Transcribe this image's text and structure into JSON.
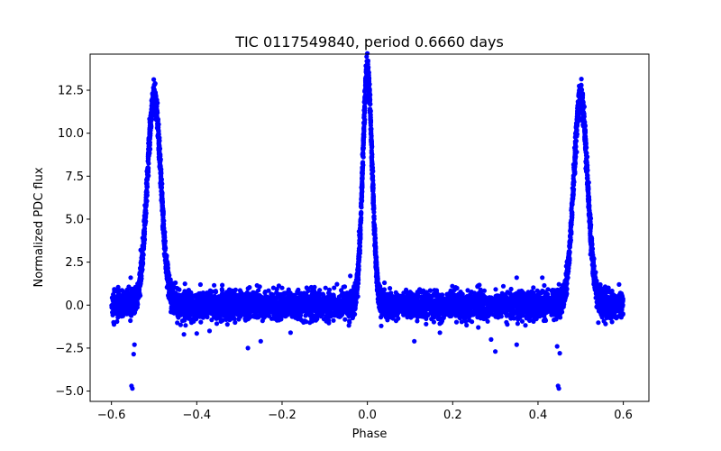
{
  "chart_data": {
    "type": "scatter",
    "title": "TIC 0117549840, period 0.6660 days",
    "xlabel": "Phase",
    "ylabel": "Normalized PDC flux",
    "xlim": [
      -0.65,
      0.66
    ],
    "ylim": [
      -5.6,
      14.6
    ],
    "xticks": [
      -0.6,
      -0.4,
      -0.2,
      0.0,
      0.2,
      0.4,
      0.6
    ],
    "xtick_labels": [
      "−0.6",
      "−0.4",
      "−0.2",
      "0.0",
      "0.2",
      "0.4",
      "0.6"
    ],
    "yticks": [
      -5.0,
      -2.5,
      0.0,
      2.5,
      5.0,
      7.5,
      10.0,
      12.5
    ],
    "ytick_labels": [
      "−5.0",
      "−2.5",
      "0.0",
      "2.5",
      "5.0",
      "7.5",
      "10.0",
      "12.5"
    ],
    "grid": false,
    "marker_color": "#0000ff",
    "series": [
      {
        "name": "light curve",
        "phase_range": [
          -0.6,
          0.6
        ],
        "baseline": 0.0,
        "baseline_scatter": 0.4,
        "peaks": [
          {
            "phase": -0.5,
            "peak_flux": 12.1,
            "width": 0.016
          },
          {
            "phase": 0.0,
            "peak_flux": 13.6,
            "width": 0.011
          },
          {
            "phase": 0.5,
            "peak_flux": 12.1,
            "width": 0.016
          }
        ],
        "outliers": [
          {
            "x": -0.553,
            "y": -4.7
          },
          {
            "x": -0.551,
            "y": -4.85
          },
          {
            "x": -0.548,
            "y": -2.85
          },
          {
            "x": -0.546,
            "y": -2.3
          },
          {
            "x": -0.43,
            "y": -1.7
          },
          {
            "x": -0.4,
            "y": -1.65
          },
          {
            "x": -0.37,
            "y": -1.5
          },
          {
            "x": -0.28,
            "y": -2.5
          },
          {
            "x": -0.25,
            "y": -2.1
          },
          {
            "x": -0.18,
            "y": -1.6
          },
          {
            "x": 0.11,
            "y": -2.1
          },
          {
            "x": 0.17,
            "y": -1.6
          },
          {
            "x": 0.26,
            "y": -1.3
          },
          {
            "x": 0.29,
            "y": -2.0
          },
          {
            "x": 0.3,
            "y": -2.7
          },
          {
            "x": 0.35,
            "y": -2.3
          },
          {
            "x": 0.445,
            "y": -2.4
          },
          {
            "x": 0.447,
            "y": -4.7
          },
          {
            "x": 0.449,
            "y": -4.85
          },
          {
            "x": 0.451,
            "y": -2.8
          },
          {
            "x": -0.45,
            "y": 1.3
          },
          {
            "x": -0.2,
            "y": 1.0
          },
          {
            "x": -0.04,
            "y": 1.7
          },
          {
            "x": 0.04,
            "y": 1.3
          },
          {
            "x": 0.35,
            "y": 1.6
          },
          {
            "x": 0.41,
            "y": 1.6
          },
          {
            "x": -0.555,
            "y": 1.6
          },
          {
            "x": 0.59,
            "y": 1.2
          }
        ]
      }
    ]
  }
}
